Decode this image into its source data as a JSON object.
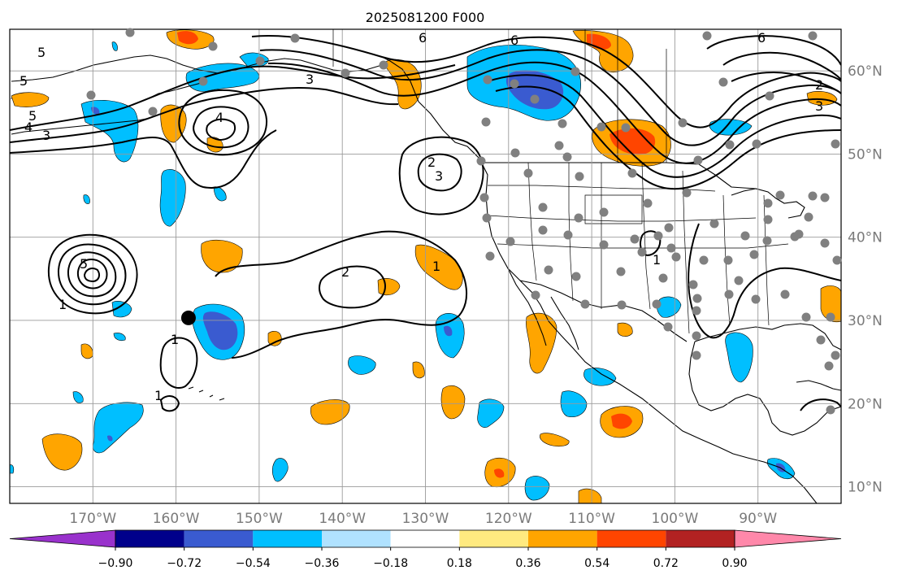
{
  "title": "2025081200 F000",
  "map": {
    "lon_range": [
      -180,
      -80
    ],
    "lat_range": [
      8,
      65
    ],
    "lon_ticks": [
      {
        "lon": -170,
        "label": "170°W"
      },
      {
        "lon": -160,
        "label": "160°W"
      },
      {
        "lon": -150,
        "label": "150°W"
      },
      {
        "lon": -140,
        "label": "140°W"
      },
      {
        "lon": -130,
        "label": "130°W"
      },
      {
        "lon": -120,
        "label": "120°W"
      },
      {
        "lon": -110,
        "label": "110°W"
      },
      {
        "lon": -100,
        "label": "100°W"
      },
      {
        "lon": -90,
        "label": "90°W"
      }
    ],
    "lat_ticks": [
      {
        "lat": 10,
        "label": "10°N"
      },
      {
        "lat": 20,
        "label": "20°N"
      },
      {
        "lat": 30,
        "label": "30°N"
      },
      {
        "lat": 40,
        "label": "40°N"
      },
      {
        "lat": 50,
        "label": "50°N"
      },
      {
        "lat": 60,
        "label": "60°N"
      }
    ],
    "grid": true,
    "marker": {
      "lon": -158.5,
      "lat": 30.3,
      "color": "#000000"
    }
  },
  "colorbar": {
    "colors": [
      "#9932cc",
      "#00008b",
      "#3a5bd0",
      "#00bfff",
      "#b0e2ff",
      "#ffffff",
      "#ffea80",
      "#ffa500",
      "#ff4500",
      "#b22222",
      "#ff88aa"
    ],
    "labels": [
      "−0.90",
      "−0.72",
      "−0.54",
      "−0.36",
      "−0.18",
      "0.18",
      "0.36",
      "0.54",
      "0.72",
      "0.90"
    ]
  },
  "contour_labels": [
    "5",
    "5",
    "5",
    "4",
    "3",
    "4",
    "3",
    "6",
    "6",
    "3",
    "2",
    "2",
    "1",
    "2",
    "1",
    "1",
    "1",
    "5",
    "1",
    "6",
    "3"
  ]
}
